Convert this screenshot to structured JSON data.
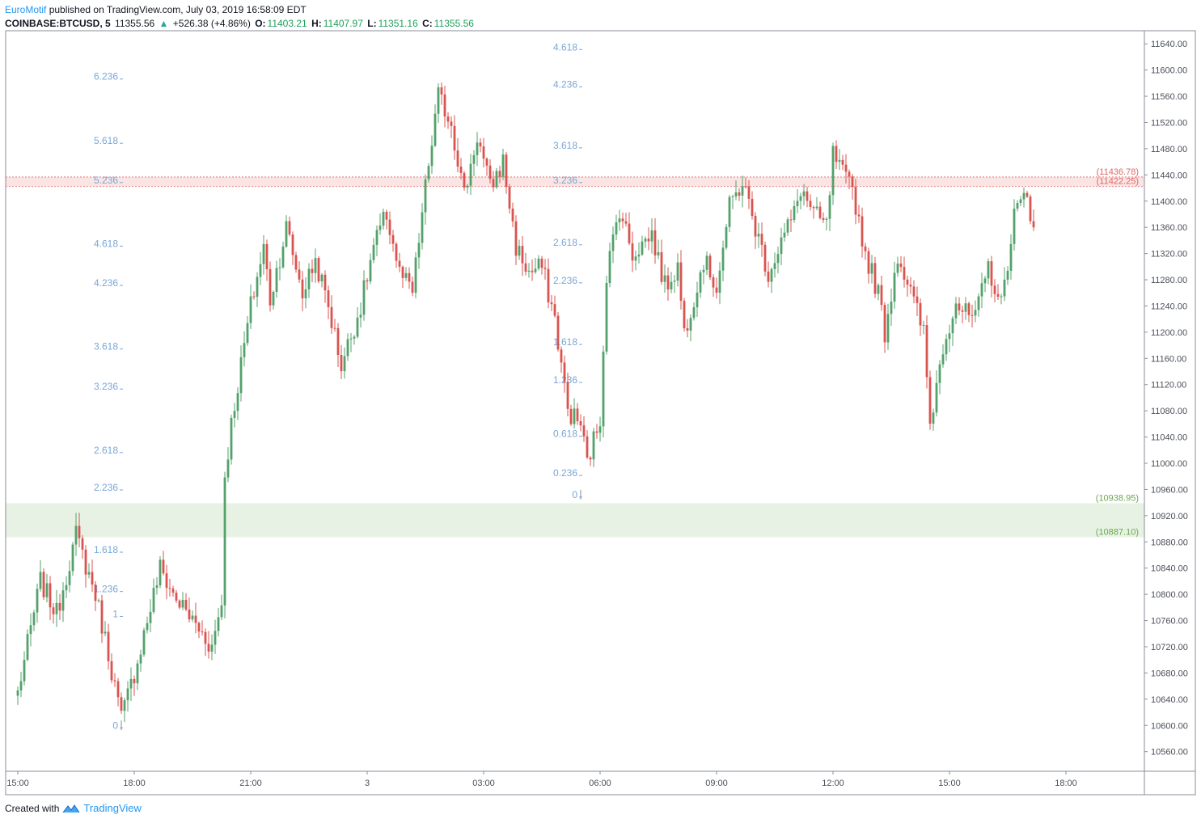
{
  "header": {
    "publisher": "EuroMotif",
    "published_text": "published on TradingView.com, July 03, 2019 16:58:09 EDT",
    "symbol": "COINBASE:BTCUSD, 5",
    "last": "11355.56",
    "change_arrow": "▲",
    "change": "+526.38 (+4.86%)",
    "o_label": "O:",
    "o_value": "11403.21",
    "h_label": "H:",
    "h_value": "11407.97",
    "l_label": "L:",
    "l_value": "11351.16",
    "c_label": "C:",
    "c_value": "11355.56"
  },
  "footer": {
    "created_with": "Created with",
    "brand": "TradingView",
    "logo_icon": "tradingview-logo-icon"
  },
  "colors": {
    "up": "#53a16b",
    "down": "#d9534f",
    "fib": "#7aa6d6",
    "support": "#6aa84f",
    "resistance": "#e06666",
    "zone_green": "#e8f2e4",
    "zone_red": "#fbe4e4"
  },
  "chart_data": {
    "type": "candlestick",
    "symbol": "COINBASE:BTCUSD",
    "interval": "5",
    "ylim": [
      10530,
      11660
    ],
    "y_ticks": [
      10560,
      10600,
      10640,
      10680,
      10720,
      10760,
      10800,
      10840,
      10880,
      10920,
      10960,
      11000,
      11040,
      11080,
      11120,
      11160,
      11200,
      11240,
      11280,
      11320,
      11360,
      11400,
      11440,
      11480,
      11520,
      11560,
      11600,
      11640
    ],
    "y_tick_labels": [
      "10560.00",
      "10600.00",
      "10640.00",
      "10680.00",
      "10720.00",
      "10760.00",
      "10800.00",
      "10840.00",
      "10880.00",
      "10920.00",
      "10960.00",
      "11000.00",
      "11040.00",
      "11080.00",
      "11120.00",
      "11160.00",
      "11200.00",
      "11240.00",
      "11280.00",
      "11320.00",
      "11360.00",
      "11400.00",
      "11440.00",
      "11480.00",
      "11520.00",
      "11560.00",
      "11600.00",
      "11640.00"
    ],
    "x_tick_labels": [
      "15:00",
      "18:00",
      "21:00",
      "3",
      "03:00",
      "06:00",
      "09:00",
      "12:00",
      "15:00",
      "18:00"
    ],
    "x_tick_bars": [
      0,
      36,
      72,
      108,
      144,
      180,
      216,
      252,
      288,
      324
    ],
    "resistance_zone": {
      "top": 11436.78,
      "bottom": 11422.25,
      "labels": [
        "(11436.78)",
        "(11422.25)"
      ]
    },
    "support_zone": {
      "top": 10938.95,
      "bottom": 10887.1,
      "labels": [
        "(10938.95)",
        "(10887.10)"
      ]
    },
    "fib_sets": [
      {
        "base_bar": 32,
        "levels": [
          {
            "label": "0",
            "price": 10600
          },
          {
            "label": "1",
            "price": 10770
          },
          {
            "label": "1.236",
            "price": 10808
          },
          {
            "label": "1.618",
            "price": 10868
          },
          {
            "label": "2.236",
            "price": 10963
          },
          {
            "label": "2.618",
            "price": 11020
          },
          {
            "label": "3.236",
            "price": 11117
          },
          {
            "label": "3.618",
            "price": 11178
          },
          {
            "label": "4.236",
            "price": 11275
          },
          {
            "label": "4.618",
            "price": 11335
          },
          {
            "label": "5.236",
            "price": 11432
          },
          {
            "label": "5.618",
            "price": 11492
          },
          {
            "label": "6.236",
            "price": 11590
          }
        ]
      },
      {
        "base_bar": 174,
        "levels": [
          {
            "label": "0",
            "price": 10952
          },
          {
            "label": "0.236",
            "price": 10985
          },
          {
            "label": "0.618",
            "price": 11045
          },
          {
            "label": "1.236",
            "price": 11127
          },
          {
            "label": "1.618",
            "price": 11185
          },
          {
            "label": "2.236",
            "price": 11279
          },
          {
            "label": "2.618",
            "price": 11337
          },
          {
            "label": "3.236",
            "price": 11432
          },
          {
            "label": "3.618",
            "price": 11485
          },
          {
            "label": "4.236",
            "price": 11578
          },
          {
            "label": "4.618",
            "price": 11635
          }
        ]
      }
    ],
    "anchors": [
      [
        0,
        10650
      ],
      [
        7,
        10820
      ],
      [
        12,
        10770
      ],
      [
        18,
        10890
      ],
      [
        24,
        10800
      ],
      [
        28,
        10710
      ],
      [
        32,
        10610
      ],
      [
        36,
        10680
      ],
      [
        44,
        10840
      ],
      [
        48,
        10800
      ],
      [
        54,
        10760
      ],
      [
        60,
        10720
      ],
      [
        63,
        10790
      ],
      [
        64,
        10980
      ],
      [
        66,
        11060
      ],
      [
        68,
        11120
      ],
      [
        72,
        11240
      ],
      [
        76,
        11330
      ],
      [
        78,
        11250
      ],
      [
        83,
        11360
      ],
      [
        88,
        11260
      ],
      [
        92,
        11310
      ],
      [
        96,
        11240
      ],
      [
        100,
        11150
      ],
      [
        106,
        11240
      ],
      [
        110,
        11330
      ],
      [
        114,
        11380
      ],
      [
        118,
        11290
      ],
      [
        122,
        11260
      ],
      [
        126,
        11420
      ],
      [
        130,
        11560
      ],
      [
        134,
        11520
      ],
      [
        138,
        11410
      ],
      [
        142,
        11500
      ],
      [
        146,
        11420
      ],
      [
        150,
        11460
      ],
      [
        154,
        11330
      ],
      [
        158,
        11290
      ],
      [
        162,
        11300
      ],
      [
        166,
        11220
      ],
      [
        170,
        11080
      ],
      [
        174,
        11060
      ],
      [
        176,
        11000
      ],
      [
        180,
        11070
      ],
      [
        182,
        11290
      ],
      [
        186,
        11390
      ],
      [
        190,
        11320
      ],
      [
        196,
        11350
      ],
      [
        200,
        11270
      ],
      [
        204,
        11300
      ],
      [
        206,
        11200
      ],
      [
        212,
        11310
      ],
      [
        216,
        11270
      ],
      [
        220,
        11390
      ],
      [
        224,
        11430
      ],
      [
        228,
        11360
      ],
      [
        232,
        11290
      ],
      [
        236,
        11340
      ],
      [
        240,
        11380
      ],
      [
        242,
        11420
      ],
      [
        246,
        11380
      ],
      [
        250,
        11360
      ],
      [
        252,
        11470
      ],
      [
        256,
        11430
      ],
      [
        258,
        11420
      ],
      [
        262,
        11320
      ],
      [
        266,
        11260
      ],
      [
        268,
        11200
      ],
      [
        272,
        11320
      ],
      [
        276,
        11260
      ],
      [
        280,
        11200
      ],
      [
        282,
        11060
      ],
      [
        286,
        11180
      ],
      [
        290,
        11250
      ],
      [
        292,
        11230
      ],
      [
        296,
        11220
      ],
      [
        300,
        11300
      ],
      [
        304,
        11240
      ],
      [
        308,
        11380
      ],
      [
        312,
        11410
      ],
      [
        314,
        11360
      ]
    ]
  }
}
